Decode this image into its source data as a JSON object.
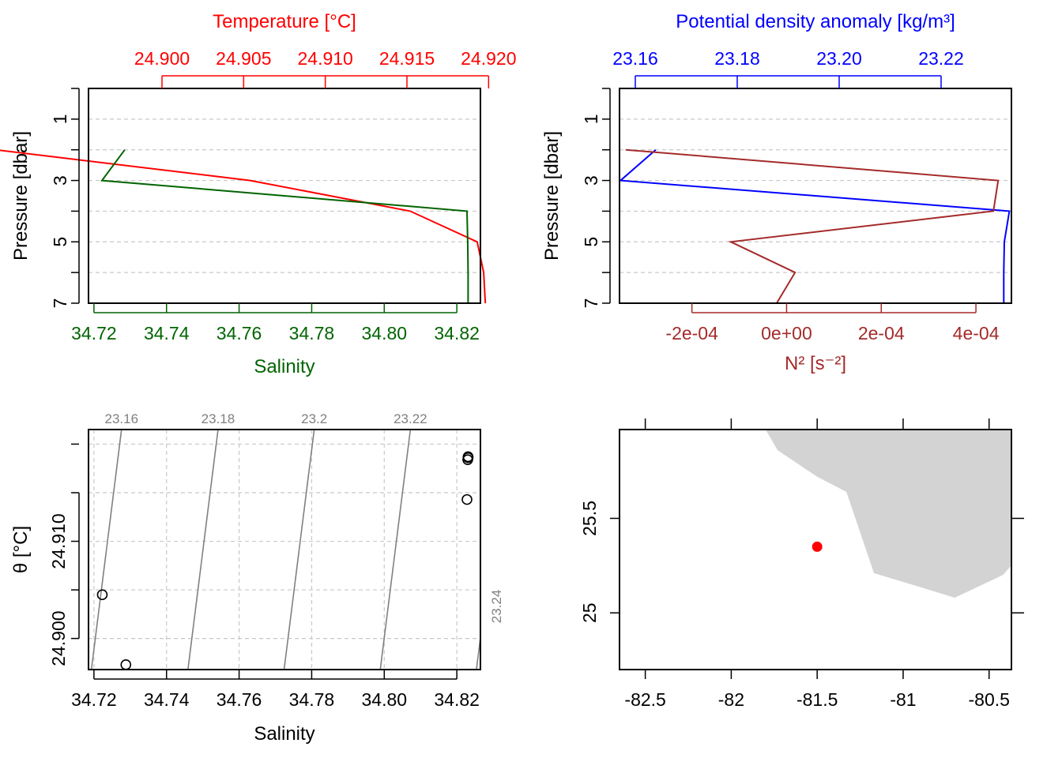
{
  "chart_data": [
    {
      "type": "line",
      "panel": "profile-temperature-salinity",
      "title": "",
      "ylabel": "Pressure [dbar]",
      "ylim": [
        7.0,
        0.0
      ],
      "yticks": [
        "1",
        "3",
        "5",
        "7"
      ],
      "grid": true,
      "top_axis": {
        "label": "Temperature [°C]",
        "color": "#ff0000",
        "range": [
          24.8955,
          24.9195
        ],
        "ticks": [
          "24.900",
          "24.905",
          "24.910",
          "24.915",
          "24.920"
        ]
      },
      "bottom_axis": {
        "label": "Salinity",
        "color": "#006400",
        "range": [
          34.7185,
          34.8265
        ],
        "ticks": [
          "34.72",
          "34.74",
          "34.76",
          "34.78",
          "34.80",
          "34.82"
        ]
      },
      "series": [
        {
          "axis": "top",
          "color": "#ff0000",
          "x": [
            24.8898,
            24.9054,
            24.9152,
            24.9193,
            24.9197,
            24.9198
          ],
          "y": [
            2,
            3,
            4,
            5,
            6,
            7
          ]
        },
        {
          "axis": "bottom",
          "color": "#006400",
          "x": [
            34.7285,
            34.7222,
            34.8228,
            34.823,
            34.8231,
            34.8231
          ],
          "y": [
            2,
            3,
            4,
            5,
            6,
            7
          ]
        }
      ]
    },
    {
      "type": "line",
      "panel": "profile-density-n2",
      "title": "",
      "ylabel": "Pressure [dbar]",
      "ylim": [
        7.0,
        0.0
      ],
      "yticks": [
        "1",
        "3",
        "5",
        "7"
      ],
      "grid": true,
      "top_axis": {
        "label": "Potential density anomaly [kg/m³]",
        "color": "#0000ff",
        "range": [
          23.1569,
          23.2338
        ],
        "ticks": [
          "23.16",
          "23.18",
          "23.20",
          "23.22"
        ]
      },
      "bottom_axis": {
        "label": "N² [s⁻²]",
        "color": "#a52a2a",
        "range": [
          -0.000353,
          0.000475
        ],
        "ticks": [
          "-2e-04",
          "0e+00",
          "2e-04",
          "4e-04"
        ]
      },
      "series": [
        {
          "axis": "top",
          "color": "#0000ff",
          "x": [
            23.164,
            23.1571,
            23.2334,
            23.2324,
            23.2323,
            23.2323
          ],
          "y": [
            2,
            3,
            4,
            5,
            6,
            7
          ]
        },
        {
          "axis": "bottom",
          "color": "#a52a2a",
          "x": [
            -0.00034,
            0.000447,
            0.000437,
            -0.000118,
            1.8e-05,
            -2.1e-05
          ],
          "y": [
            2,
            3,
            4,
            5,
            6,
            7
          ]
        }
      ]
    },
    {
      "type": "scatter",
      "panel": "ts-diagram",
      "title": "",
      "xlabel": "Salinity",
      "ylabel": "θ [°C]",
      "xlim": [
        34.7185,
        34.8265
      ],
      "ylim": [
        24.8968,
        24.9215
      ],
      "xticks": [
        "34.72",
        "34.74",
        "34.76",
        "34.78",
        "34.80",
        "34.82"
      ],
      "yticks": [
        "24.900",
        "24.910"
      ],
      "grid": true,
      "points": {
        "x": [
          34.7288,
          34.7223,
          34.8228,
          34.823,
          34.8231,
          34.8231
        ],
        "y": [
          24.8973,
          24.9045,
          24.9143,
          24.9184,
          24.9186,
          24.9187
        ]
      },
      "isopycnals": [
        {
          "label": "23.16",
          "x": [
            34.7193,
            34.7276
          ]
        },
        {
          "label": "23.18",
          "x": [
            34.7459,
            34.7542
          ]
        },
        {
          "label": "23.2",
          "x": [
            34.7724,
            34.7807
          ]
        },
        {
          "label": "23.22",
          "x": [
            34.7989,
            34.8072
          ]
        },
        {
          "label": "23.24",
          "x": [
            34.8254,
            34.8337
          ]
        }
      ]
    },
    {
      "type": "scatter",
      "panel": "station-map",
      "title": "",
      "xlim": [
        -82.65,
        -80.37
      ],
      "ylim": [
        24.7,
        25.97
      ],
      "xticks": [
        "-82.5",
        "-82",
        "-81.5",
        "-81",
        "-80.5"
      ],
      "yticks": [
        "25",
        "25.5"
      ],
      "station": {
        "lon": -81.5,
        "lat": 25.35,
        "color": "#ff0000"
      },
      "land_color": "#d3d3d3",
      "land": [
        [
          -81.8,
          25.97
        ],
        [
          -81.73,
          25.86
        ],
        [
          -81.5,
          25.72
        ],
        [
          -81.33,
          25.64
        ],
        [
          -81.17,
          25.21
        ],
        [
          -80.95,
          25.15
        ],
        [
          -80.7,
          25.08
        ],
        [
          -80.42,
          25.2
        ],
        [
          -80.37,
          25.25
        ],
        [
          -80.37,
          25.97
        ]
      ]
    }
  ]
}
